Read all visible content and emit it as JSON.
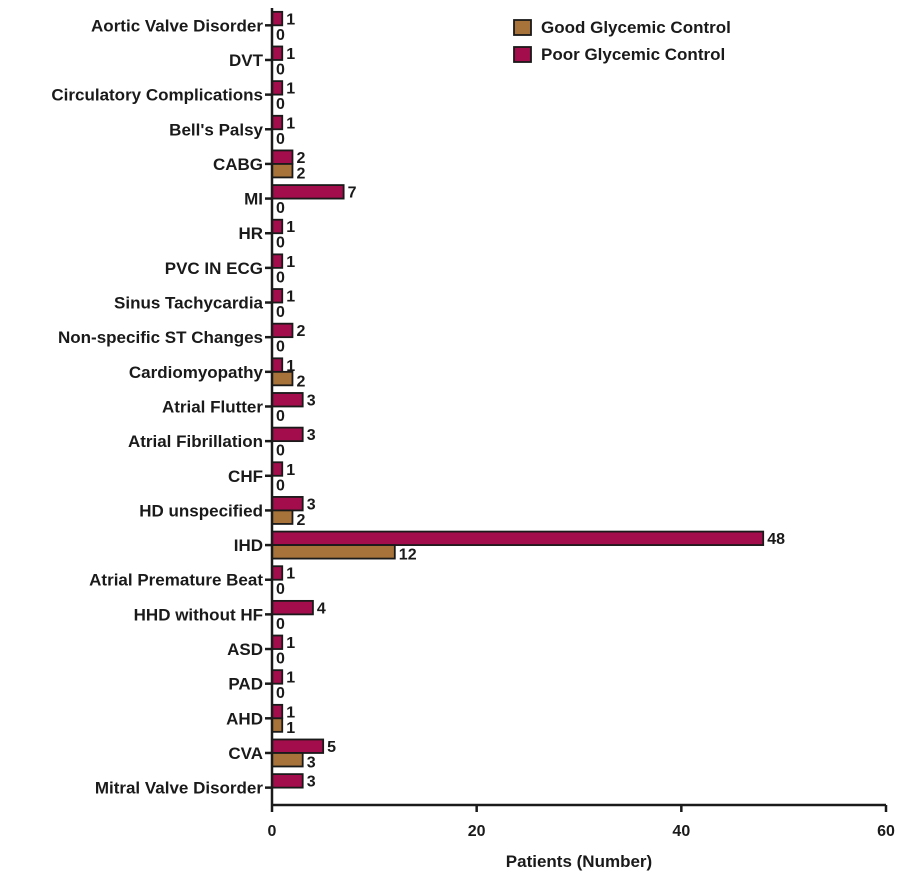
{
  "chart_data": {
    "type": "bar",
    "orientation": "horizontal",
    "xlabel": "Patients (Number)",
    "ylabel": "",
    "title": "",
    "xlim": [
      0,
      60
    ],
    "xticks": [
      0,
      20,
      40,
      60
    ],
    "grid": false,
    "legend_position": "top-right",
    "categories": [
      "Aortic Valve Disorder",
      "DVT",
      "Circulatory Complications",
      "Bell's Palsy",
      "CABG",
      "MI",
      "HR",
      "PVC IN ECG",
      "Sinus Tachycardia",
      "Non-specific ST Changes",
      "Cardiomyopathy",
      "Atrial Flutter",
      "Atrial Fibrillation",
      "CHF",
      "HD unspecified",
      "IHD",
      "Atrial Premature Beat",
      "HHD without HF",
      "ASD",
      "PAD",
      "AHD",
      "CVA",
      "Mitral Valve Disorder"
    ],
    "series": [
      {
        "name": "Good Glycemic Control",
        "color": "#a8733a",
        "values": [
          0,
          0,
          0,
          0,
          2,
          0,
          0,
          0,
          0,
          0,
          2,
          0,
          0,
          0,
          2,
          12,
          0,
          0,
          0,
          0,
          1,
          3,
          null
        ],
        "labels": [
          "0",
          "0",
          "0",
          "0",
          "2",
          "0",
          "0",
          "0",
          "0",
          "0",
          "2",
          "0",
          "0",
          "0",
          "2",
          "12",
          "0",
          "0",
          "0",
          "0",
          "1",
          "3",
          ""
        ]
      },
      {
        "name": "Poor Glycemic Control",
        "color": "#a30d4b",
        "values": [
          1,
          1,
          1,
          1,
          2,
          7,
          1,
          1,
          1,
          2,
          1,
          3,
          3,
          1,
          3,
          48,
          1,
          4,
          1,
          1,
          1,
          5,
          3
        ],
        "labels": [
          "1",
          "1",
          "1",
          "1",
          "2",
          "7",
          "1",
          "1",
          "1",
          "2",
          "1",
          "3",
          "3",
          "1",
          "3",
          "48",
          "1",
          "4",
          "1",
          "1",
          "1",
          "5",
          "3"
        ]
      }
    ]
  }
}
